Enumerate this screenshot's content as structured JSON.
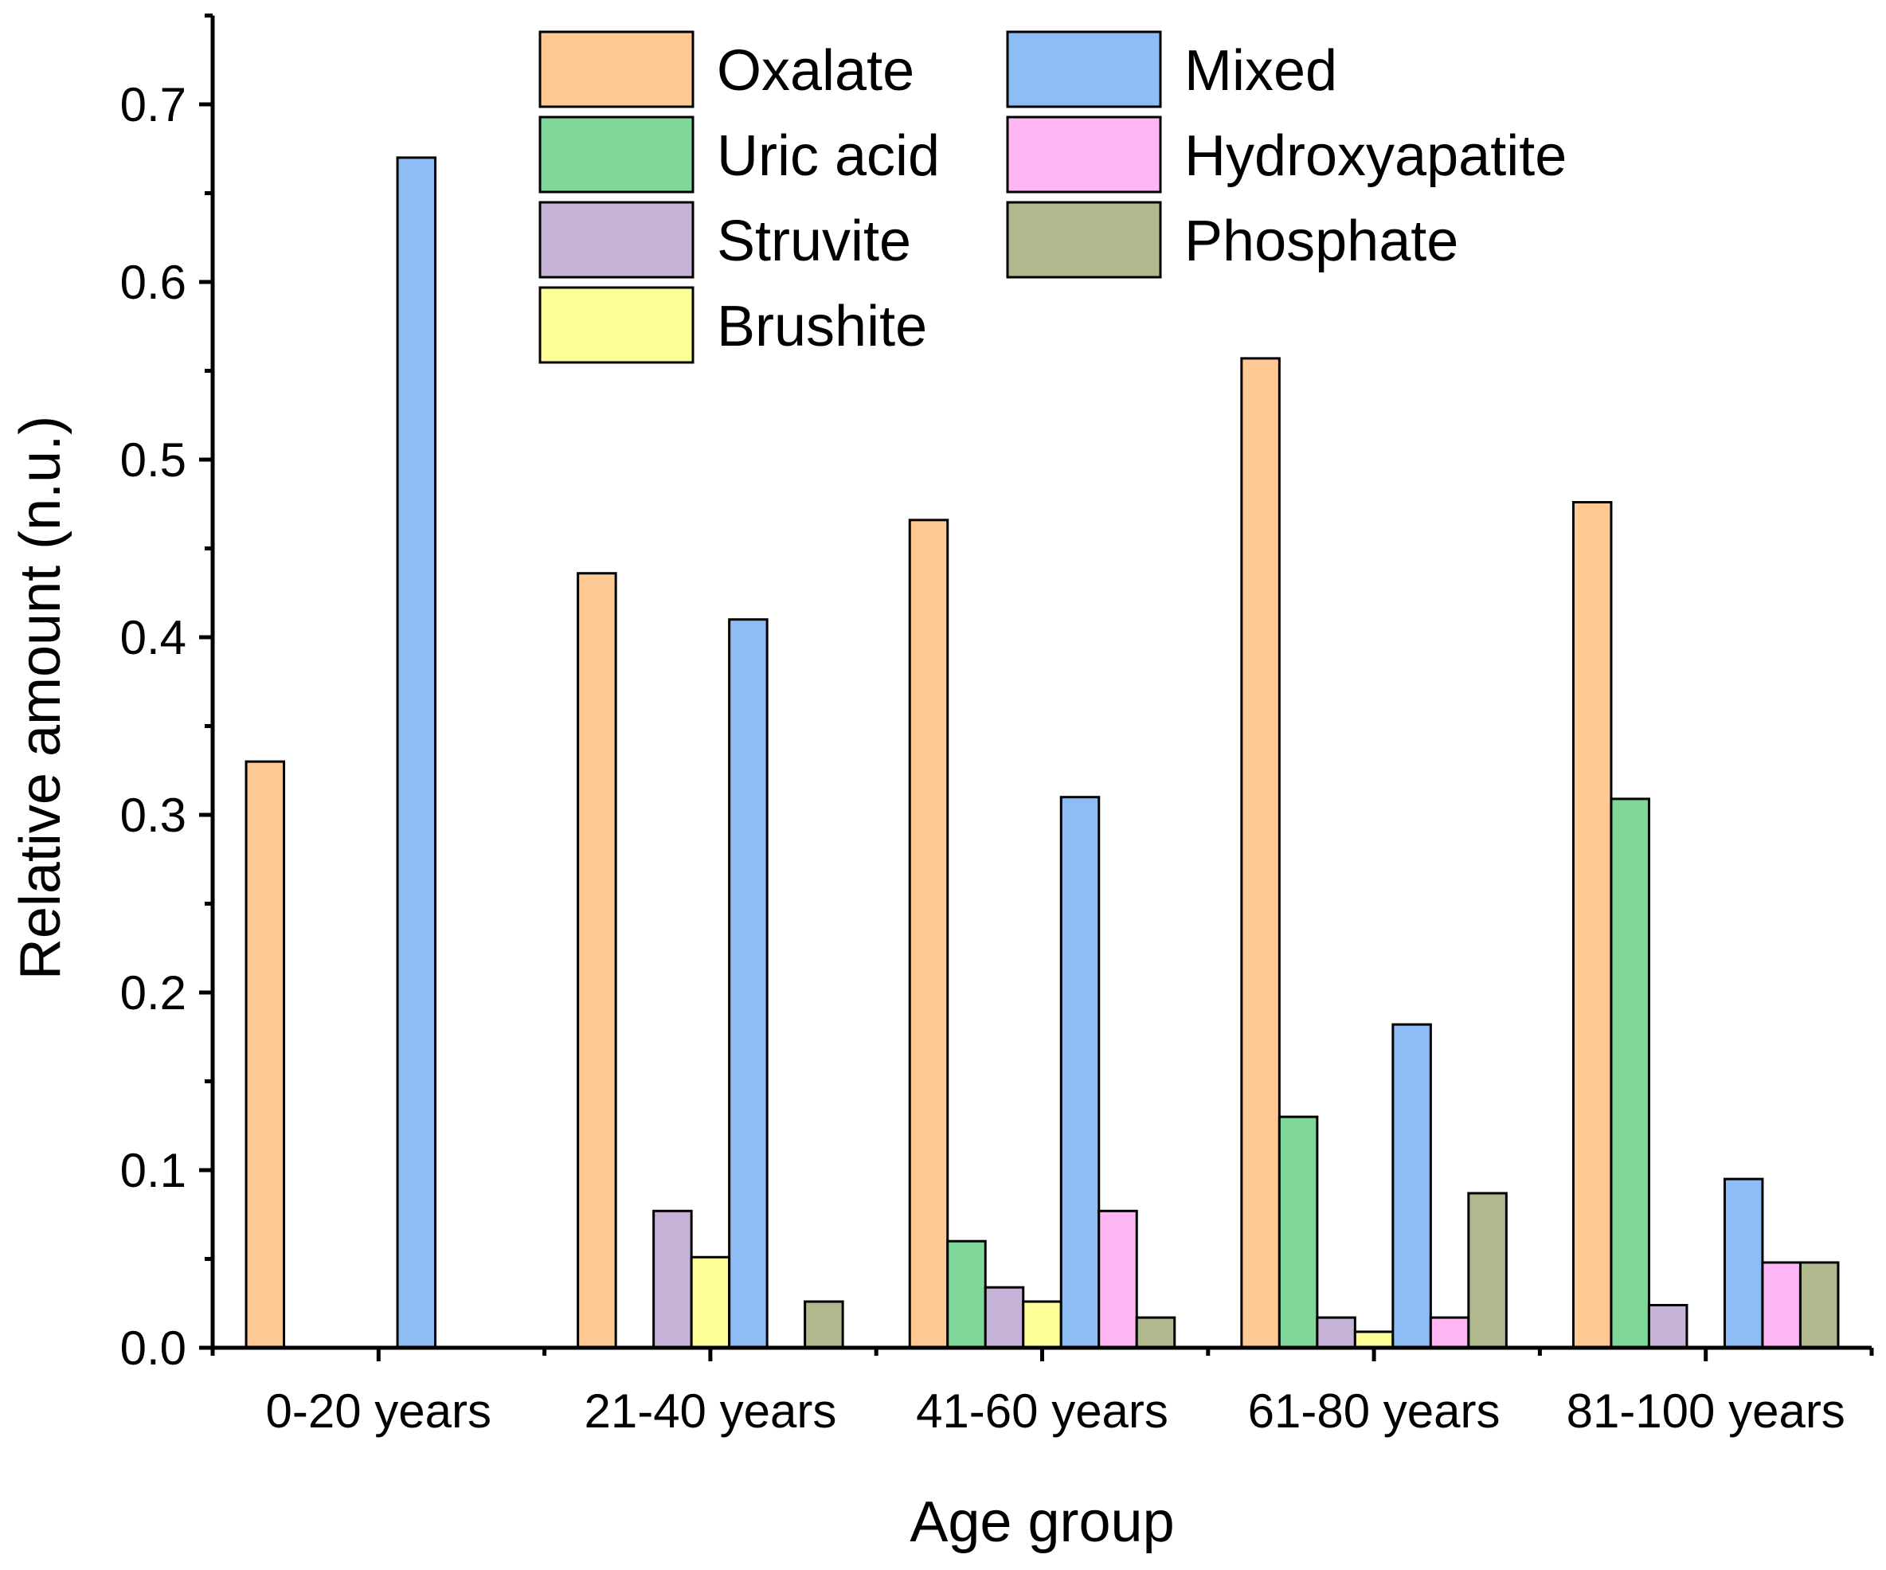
{
  "chart_data": {
    "type": "bar",
    "title": "",
    "xlabel": "Age group",
    "ylabel": "Relative amount (n.u.)",
    "ylim": [
      0,
      0.75
    ],
    "yticks": [
      "0.0",
      "0.1",
      "0.2",
      "0.3",
      "0.4",
      "0.5",
      "0.6",
      "0.7"
    ],
    "grid": false,
    "legend_position": "top",
    "categories": [
      "0-20 years",
      "21-40 years",
      "41-60 years",
      "61-80 years",
      "81-100 years"
    ],
    "series": [
      {
        "name": "Oxalate",
        "color": "#FFC993",
        "values": [
          0.33,
          0.436,
          0.466,
          0.557,
          0.476
        ]
      },
      {
        "name": "Uric acid",
        "color": "#7FD89A",
        "values": [
          0,
          0,
          0.06,
          0.13,
          0.309
        ]
      },
      {
        "name": "Struvite",
        "color": "#C8B3D8",
        "values": [
          0,
          0.077,
          0.034,
          0.017,
          0.024
        ]
      },
      {
        "name": "Brushite",
        "color": "#FFFF99",
        "values": [
          0,
          0.051,
          0.026,
          0.009,
          0
        ]
      },
      {
        "name": "Mixed",
        "color": "#8EBDF5",
        "values": [
          0.67,
          0.41,
          0.31,
          0.182,
          0.095
        ]
      },
      {
        "name": "Hydroxyapatite",
        "color": "#FFB6F5",
        "values": [
          0,
          0,
          0.077,
          0.017,
          0.048
        ]
      },
      {
        "name": "Phosphate",
        "color": "#B0B98E",
        "values": [
          0,
          0.026,
          0.017,
          0.087,
          0.048
        ]
      }
    ]
  }
}
